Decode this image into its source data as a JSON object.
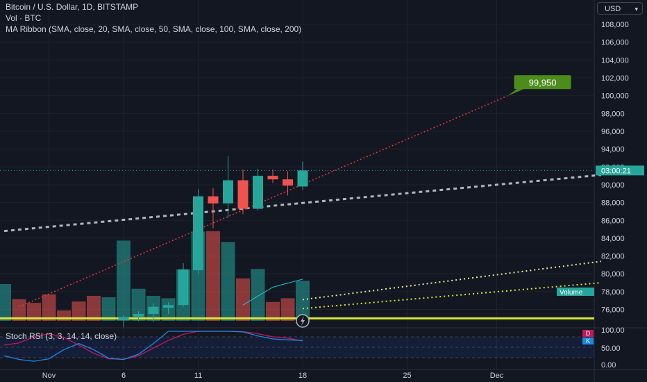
{
  "header": {
    "symbol_title": "Bitcoin / U.S. Dollar, 1D, BITSTAMP",
    "volume_legend": "Vol · BTC",
    "ma_legend": "MA Ribbon (SMA, close, 20, SMA, close, 50, SMA, close, 100, SMA, close, 200)",
    "currency": "USD"
  },
  "rsi": {
    "legend": "Stoch RSI (3, 3, 14, 14, close)",
    "badge_d": "D",
    "badge_k": "K",
    "d_color": "#c2185b",
    "k_color": "#1e88e5",
    "levels": [
      100,
      50,
      0
    ]
  },
  "colors": {
    "background": "#131722",
    "up": "#26a69a",
    "down": "#ef5350",
    "projection": "#e53935",
    "target_badge": "#4c8c1a",
    "ma_20": "#e6ee9c",
    "ma_50": "#d6e97a",
    "ma_100": "#c5e45a",
    "ma_200": "#d9e63a",
    "trendline": "#b2b5be"
  },
  "chart_data": {
    "type": "candlestick",
    "symbol": "Bitcoin / U.S. Dollar",
    "interval": "1D",
    "exchange": "BITSTAMP",
    "price_axis": {
      "ylim": [
        74000,
        109600
      ],
      "ticks": [
        "108,000",
        "106,000",
        "104,000",
        "102,000",
        "100,000",
        "98,000",
        "96,000",
        "94,000",
        "92,000",
        "90,000",
        "88,000",
        "86,000",
        "84,000",
        "82,000",
        "80,000",
        "78,000",
        "76,000"
      ]
    },
    "time_axis": {
      "ticks": [
        {
          "label": "Nov",
          "day": 0
        },
        {
          "label": "6",
          "day": 5
        },
        {
          "label": "11",
          "day": 10
        },
        {
          "label": "18",
          "day": 17
        },
        {
          "label": "25",
          "day": 24
        },
        {
          "label": "Dec",
          "day": 30
        }
      ]
    },
    "candles": [
      {
        "day": 5,
        "open": 74800,
        "high": 75400,
        "low": 74000,
        "close": 75100
      },
      {
        "day": 6,
        "open": 75200,
        "high": 75800,
        "low": 74700,
        "close": 75500
      },
      {
        "day": 7,
        "open": 75500,
        "high": 76700,
        "low": 74600,
        "close": 76300
      },
      {
        "day": 8,
        "open": 76200,
        "high": 76800,
        "low": 75500,
        "close": 76500
      },
      {
        "day": 9,
        "open": 76500,
        "high": 81200,
        "low": 76300,
        "close": 80500
      },
      {
        "day": 10,
        "open": 80400,
        "high": 89500,
        "low": 80000,
        "close": 88700
      },
      {
        "day": 11,
        "open": 88700,
        "high": 89600,
        "low": 85100,
        "close": 87900
      },
      {
        "day": 12,
        "open": 87900,
        "high": 93200,
        "low": 86300,
        "close": 90500
      },
      {
        "day": 13,
        "open": 90500,
        "high": 91700,
        "low": 86700,
        "close": 87300
      },
      {
        "day": 14,
        "open": 87300,
        "high": 91800,
        "low": 87100,
        "close": 91000
      },
      {
        "day": 15,
        "open": 91000,
        "high": 91700,
        "low": 90200,
        "close": 90600
      },
      {
        "day": 16,
        "open": 90600,
        "high": 91500,
        "low": 88800,
        "close": 89900
      },
      {
        "day": 17,
        "open": 89800,
        "high": 92600,
        "low": 89400,
        "close": 91600
      }
    ],
    "volume": {
      "label": "Volume",
      "bars": [
        {
          "day": -3,
          "value": 0.78,
          "dir": "up"
        },
        {
          "day": -2,
          "value": 0.46,
          "dir": "down"
        },
        {
          "day": -1,
          "value": 0.38,
          "dir": "down"
        },
        {
          "day": 0,
          "value": 0.56,
          "dir": "down"
        },
        {
          "day": 1,
          "value": 0.22,
          "dir": "down"
        },
        {
          "day": 2,
          "value": 0.41,
          "dir": "down"
        },
        {
          "day": 3,
          "value": 0.53,
          "dir": "down"
        },
        {
          "day": 4,
          "value": 0.5,
          "dir": "up"
        },
        {
          "day": 5,
          "value": 1.7,
          "dir": "up"
        },
        {
          "day": 6,
          "value": 0.68,
          "dir": "up"
        },
        {
          "day": 7,
          "value": 0.53,
          "dir": "up"
        },
        {
          "day": 8,
          "value": 0.48,
          "dir": "up"
        },
        {
          "day": 9,
          "value": 1.09,
          "dir": "up"
        },
        {
          "day": 10,
          "value": 1.89,
          "dir": "up"
        },
        {
          "day": 11,
          "value": 1.9,
          "dir": "down"
        },
        {
          "day": 12,
          "value": 1.67,
          "dir": "up"
        },
        {
          "day": 13,
          "value": 0.9,
          "dir": "down"
        },
        {
          "day": 14,
          "value": 1.1,
          "dir": "up"
        },
        {
          "day": 15,
          "value": 0.4,
          "dir": "down"
        },
        {
          "day": 16,
          "value": 0.48,
          "dir": "down"
        },
        {
          "day": 17,
          "value": 0.85,
          "dir": "up"
        }
      ]
    },
    "current_price": {
      "value": 91600,
      "label": "03:00:21"
    },
    "projection": {
      "from": {
        "day": -2,
        "price": 76300
      },
      "to": {
        "day": 30.7,
        "price": 99950
      },
      "label": "99,950"
    },
    "trendlines": [
      {
        "from": {
          "day": -3,
          "price": 84800
        },
        "to": {
          "day": 37,
          "price": 91100
        }
      },
      {
        "from": {
          "day": 17,
          "price": 77100
        },
        "to": {
          "day": 37,
          "price": 81400
        }
      },
      {
        "from": {
          "day": 17,
          "price": 76100
        },
        "to": {
          "day": 37,
          "price": 79000
        }
      }
    ],
    "ma_flat_line": {
      "price": 75000
    },
    "stoch_rsi": {
      "k": [
        {
          "day": -3,
          "value": 20
        },
        {
          "day": -2,
          "value": 8
        },
        {
          "day": -1,
          "value": 2
        },
        {
          "day": 0,
          "value": 10
        },
        {
          "day": 1,
          "value": 40
        },
        {
          "day": 2,
          "value": 60
        },
        {
          "day": 3,
          "value": 40
        },
        {
          "day": 4,
          "value": 12
        },
        {
          "day": 5,
          "value": 8
        },
        {
          "day": 6,
          "value": 25
        },
        {
          "day": 7,
          "value": 60
        },
        {
          "day": 8,
          "value": 100
        },
        {
          "day": 9,
          "value": 100
        },
        {
          "day": 10,
          "value": 100
        },
        {
          "day": 11,
          "value": 100
        },
        {
          "day": 12,
          "value": 100
        },
        {
          "day": 13,
          "value": 98
        },
        {
          "day": 14,
          "value": 85
        },
        {
          "day": 15,
          "value": 75
        },
        {
          "day": 16,
          "value": 72
        },
        {
          "day": 17,
          "value": 70
        }
      ],
      "d": [
        {
          "day": -3,
          "value": 55
        },
        {
          "day": -2,
          "value": 62
        },
        {
          "day": -1,
          "value": 82
        },
        {
          "day": 0,
          "value": 92
        },
        {
          "day": 1,
          "value": 80
        },
        {
          "day": 2,
          "value": 55
        },
        {
          "day": 3,
          "value": 28
        },
        {
          "day": 4,
          "value": 10
        },
        {
          "day": 5,
          "value": 8
        },
        {
          "day": 6,
          "value": 20
        },
        {
          "day": 7,
          "value": 45
        },
        {
          "day": 8,
          "value": 70
        },
        {
          "day": 9,
          "value": 90
        },
        {
          "day": 10,
          "value": 100
        },
        {
          "day": 11,
          "value": 100
        },
        {
          "day": 12,
          "value": 100
        },
        {
          "day": 13,
          "value": 99
        },
        {
          "day": 14,
          "value": 92
        },
        {
          "day": 15,
          "value": 82
        },
        {
          "day": 16,
          "value": 78
        },
        {
          "day": 17,
          "value": 68
        }
      ]
    }
  }
}
